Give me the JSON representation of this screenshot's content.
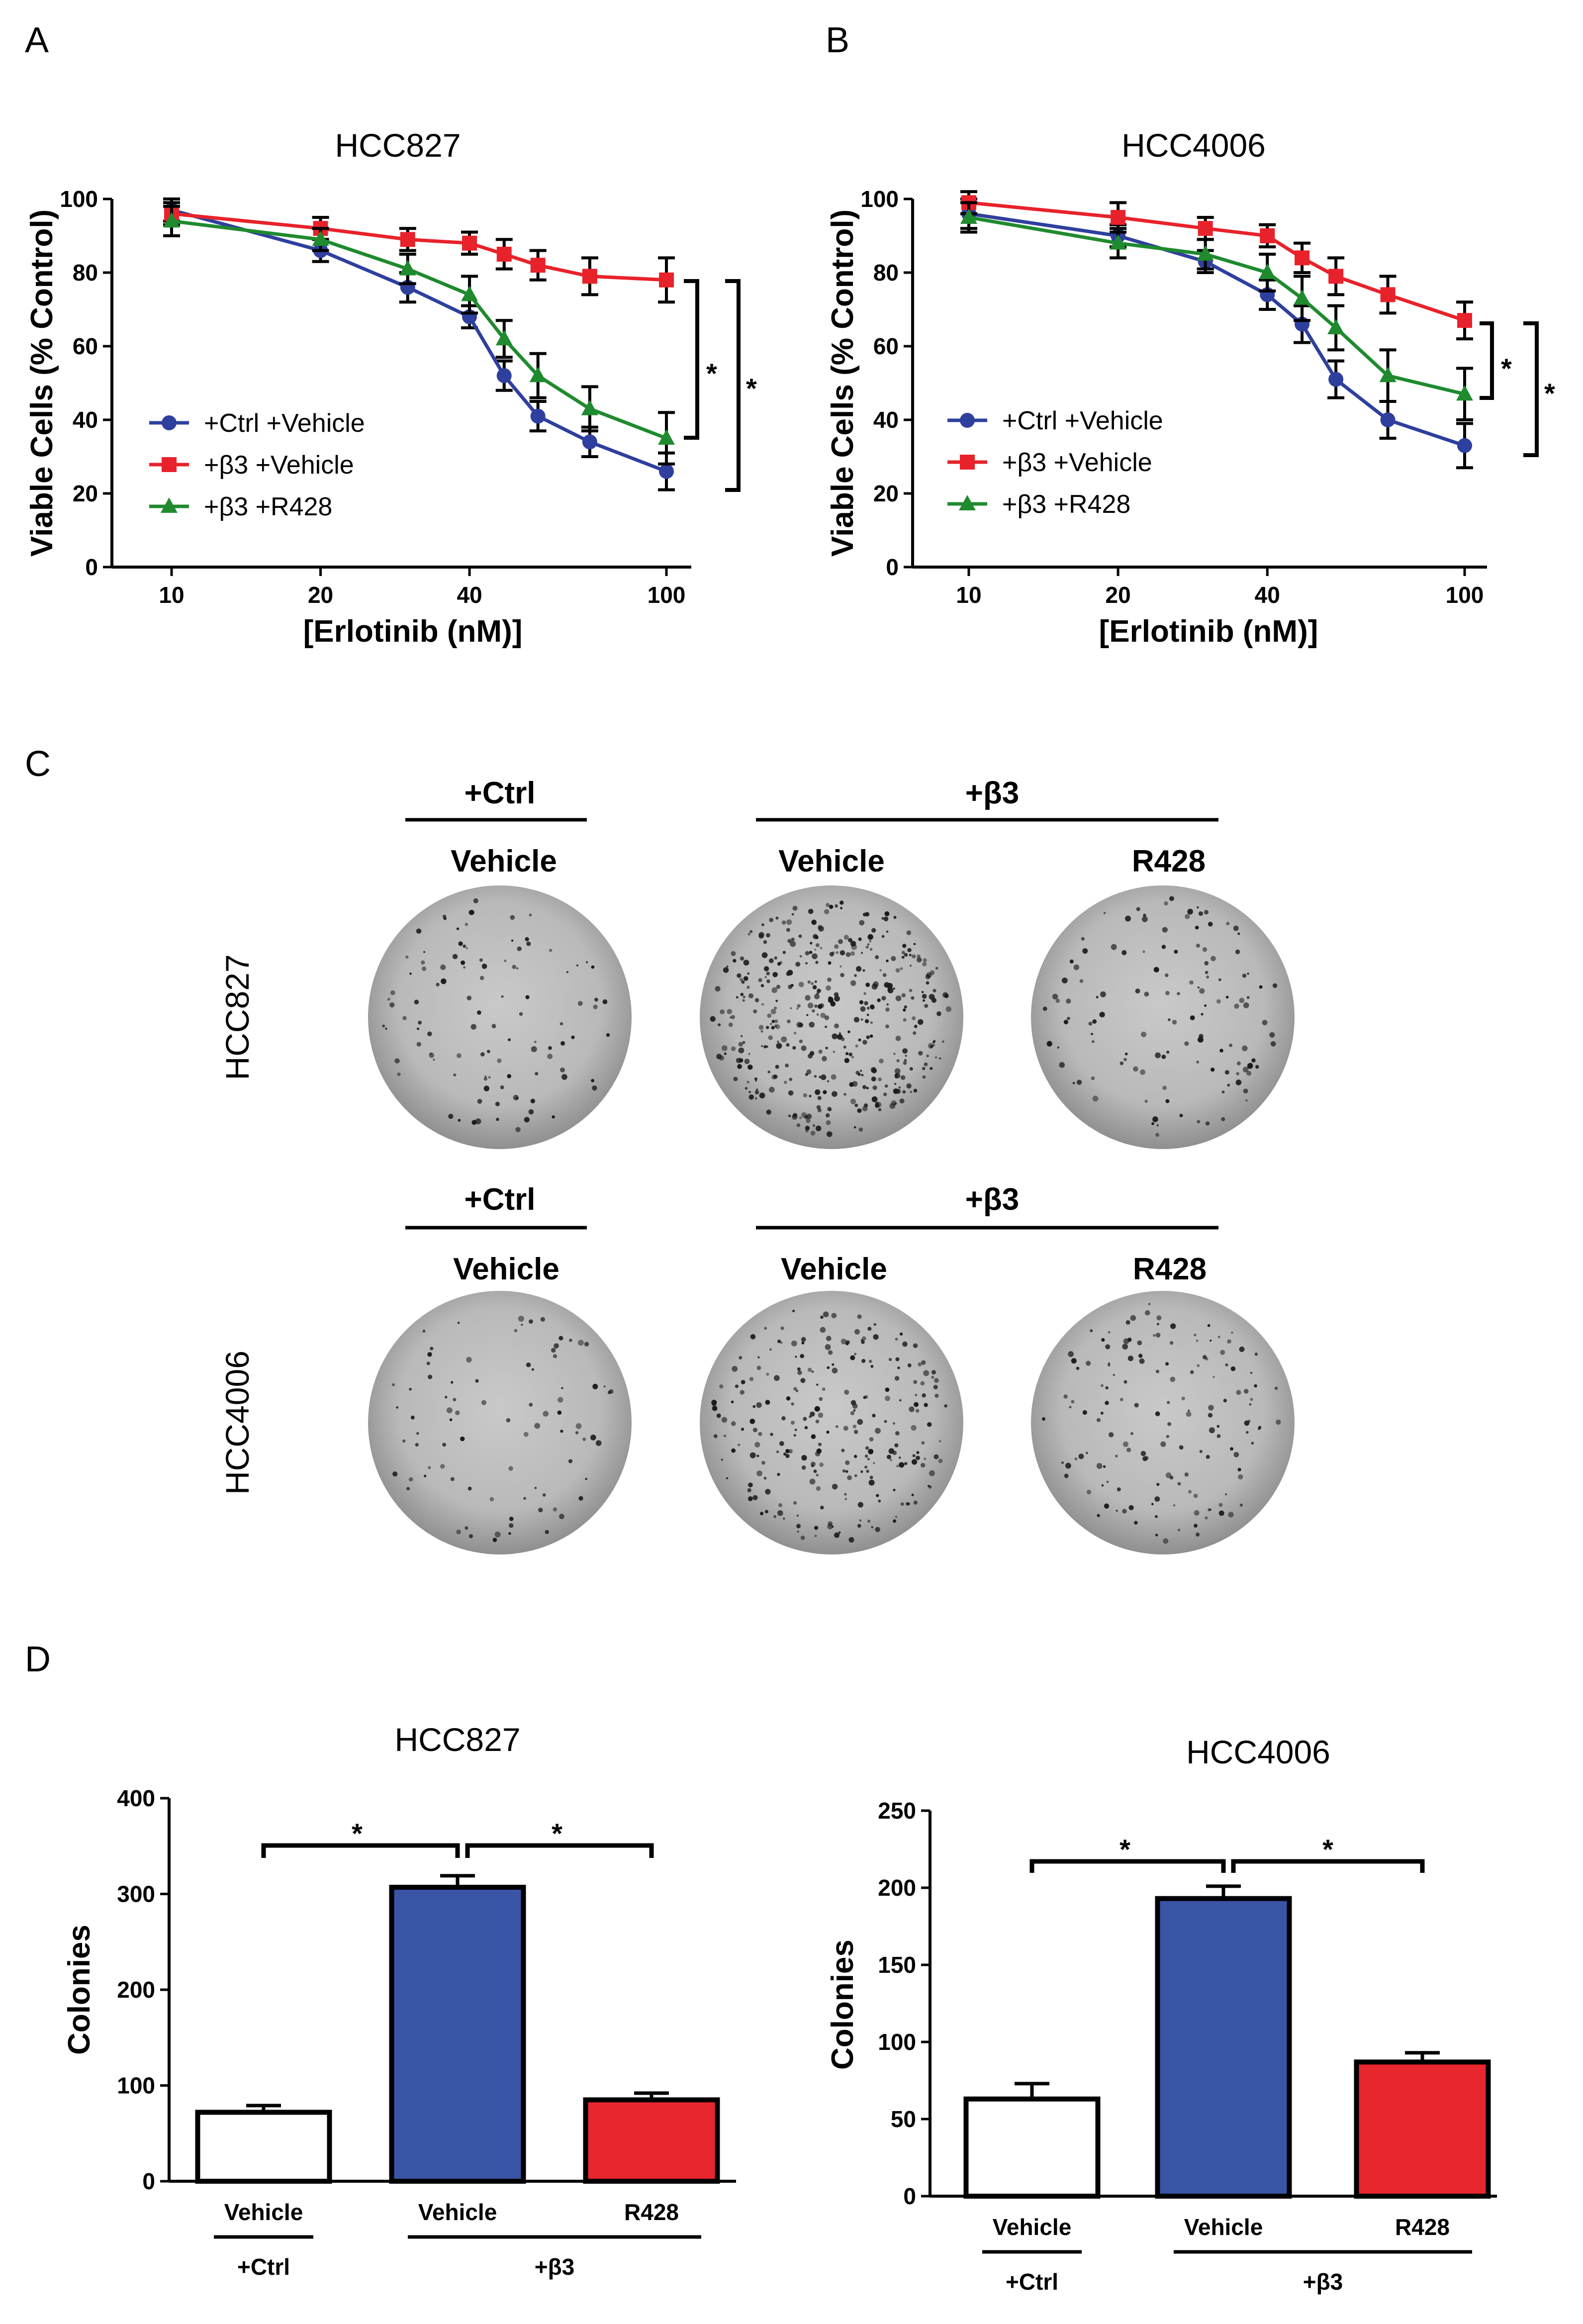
{
  "panels": {
    "a": "A",
    "b": "B",
    "c": "C",
    "d": "D"
  },
  "chart_data": [
    {
      "id": "A",
      "type": "line",
      "title": "HCC827",
      "xlabel": "[Erlotinib (nM)]",
      "ylabel": "Viable Cells (% Control)",
      "xscale": "log",
      "xlim": [
        10,
        100
      ],
      "ylim": [
        0,
        100
      ],
      "xticks": [
        "10",
        "20",
        "40",
        "100"
      ],
      "yticks": [
        "0",
        "20",
        "40",
        "60",
        "80",
        "100"
      ],
      "legend_position": "bottom-left",
      "x": [
        10,
        20,
        30,
        40,
        47,
        55,
        70,
        100
      ],
      "series": [
        {
          "name": "+Ctrl +Vehicle",
          "color": "#2e3f9e",
          "marker": "circle",
          "values": [
            97,
            86,
            76,
            68,
            52,
            41,
            34,
            26
          ],
          "errors": [
            3,
            3,
            4,
            3,
            4,
            4,
            4,
            5
          ]
        },
        {
          "name": "+β3 +Vehicle",
          "color": "#e8222a",
          "marker": "square",
          "values": [
            96,
            92,
            89,
            88,
            85,
            82,
            79,
            78
          ],
          "errors": [
            3,
            3,
            3,
            3,
            4,
            4,
            5,
            6
          ]
        },
        {
          "name": "+β3 +R428",
          "color": "#1f8a2e",
          "marker": "triangle",
          "values": [
            94,
            89,
            81,
            74,
            62,
            52,
            43,
            35
          ],
          "errors": [
            4,
            3,
            4,
            5,
            5,
            6,
            6,
            7
          ]
        }
      ],
      "significance": [
        "*",
        "*"
      ]
    },
    {
      "id": "B",
      "type": "line",
      "title": "HCC4006",
      "xlabel": "[Erlotinib (nM)]",
      "ylabel": "Viable Cells (% Control)",
      "xscale": "log",
      "xlim": [
        10,
        100
      ],
      "ylim": [
        0,
        100
      ],
      "xticks": [
        "10",
        "20",
        "40",
        "100"
      ],
      "yticks": [
        "0",
        "20",
        "40",
        "60",
        "80",
        "100"
      ],
      "legend_position": "bottom-left",
      "x": [
        10,
        20,
        30,
        40,
        47,
        55,
        70,
        100
      ],
      "series": [
        {
          "name": "+Ctrl +Vehicle",
          "color": "#2e3f9e",
          "marker": "circle",
          "values": [
            96,
            90,
            83,
            74,
            66,
            51,
            40,
            33
          ],
          "errors": [
            4,
            3,
            3,
            4,
            5,
            5,
            5,
            6
          ]
        },
        {
          "name": "+β3 +Vehicle",
          "color": "#e8222a",
          "marker": "square",
          "values": [
            99,
            95,
            92,
            90,
            84,
            79,
            74,
            67
          ],
          "errors": [
            3,
            4,
            3,
            3,
            4,
            5,
            5,
            5
          ]
        },
        {
          "name": "+β3 +R428",
          "color": "#1f8a2e",
          "marker": "triangle",
          "values": [
            95,
            88,
            85,
            80,
            73,
            65,
            52,
            47
          ],
          "errors": [
            4,
            4,
            4,
            5,
            6,
            6,
            7,
            7
          ]
        }
      ],
      "significance": [
        "*",
        "*"
      ]
    },
    {
      "id": "D1",
      "type": "bar",
      "title": "HCC827",
      "ylabel": "Colonies",
      "ylim": [
        0,
        400
      ],
      "yticks": [
        "0",
        "100",
        "200",
        "300",
        "400"
      ],
      "categories": [
        "Vehicle",
        "Vehicle",
        "R428"
      ],
      "values": [
        72,
        307,
        85
      ],
      "errors": [
        7,
        12,
        7
      ],
      "colors": [
        "#ffffff",
        "#3a54a6",
        "#e8262d"
      ],
      "groups": [
        {
          "label": "+Ctrl",
          "span": [
            0,
            0
          ]
        },
        {
          "label": "+β3",
          "span": [
            1,
            2
          ]
        }
      ],
      "significance": [
        "*",
        "*"
      ]
    },
    {
      "id": "D2",
      "type": "bar",
      "title": "HCC4006",
      "ylabel": "Colonies",
      "ylim": [
        0,
        250
      ],
      "yticks": [
        "0",
        "50",
        "100",
        "150",
        "200",
        "250"
      ],
      "categories": [
        "Vehicle",
        "Vehicle",
        "R428"
      ],
      "values": [
        63,
        193,
        87
      ],
      "errors": [
        10,
        8,
        6
      ],
      "colors": [
        "#ffffff",
        "#3a54a6",
        "#e8262d"
      ],
      "groups": [
        {
          "label": "+Ctrl",
          "span": [
            0,
            0
          ]
        },
        {
          "label": "+β3",
          "span": [
            1,
            2
          ]
        }
      ],
      "significance": [
        "*",
        "*"
      ]
    }
  ],
  "panel_c": {
    "rows": [
      {
        "cell_line": "HCC827",
        "group_ctrl": "+Ctrl",
        "group_b3": "+β3",
        "conditions": [
          "Vehicle",
          "Vehicle",
          "R428"
        ],
        "colony_density": [
          0.25,
          1.0,
          0.3
        ]
      },
      {
        "cell_line": "HCC4006",
        "group_ctrl": "+Ctrl",
        "group_b3": "+β3",
        "conditions": [
          "Vehicle",
          "Vehicle",
          "R428"
        ],
        "colony_density": [
          0.2,
          0.6,
          0.35
        ]
      }
    ]
  }
}
